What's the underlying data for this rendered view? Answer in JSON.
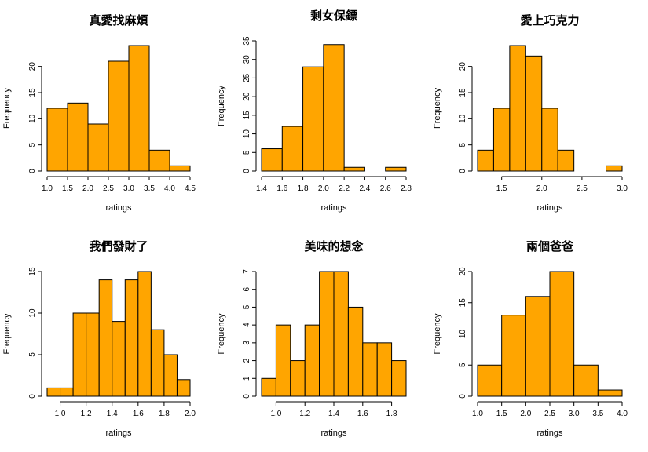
{
  "chart_data": [
    {
      "type": "bar",
      "title": "真愛找麻煩",
      "xlabel": "ratings",
      "ylabel": "Frequency",
      "bin_edges": [
        1.0,
        1.5,
        2.0,
        2.5,
        3.0,
        3.5,
        4.0,
        4.5
      ],
      "values": [
        12,
        13,
        9,
        21,
        24,
        4,
        1
      ],
      "xlim": [
        1.0,
        4.5
      ],
      "ylim": [
        0,
        24
      ],
      "xticks": [
        "1.0",
        "1.5",
        "2.0",
        "2.5",
        "3.0",
        "3.5",
        "4.0",
        "4.5"
      ],
      "yticks": [
        "0",
        "5",
        "10",
        "15",
        "20"
      ],
      "color": "#FFA500"
    },
    {
      "type": "bar",
      "title": "剩女保鏢",
      "xlabel": "ratings",
      "ylabel": "Frequency",
      "bin_edges": [
        1.4,
        1.6,
        1.8,
        2.0,
        2.2,
        2.4,
        2.6,
        2.8
      ],
      "values": [
        6,
        12,
        28,
        34,
        1,
        0,
        1
      ],
      "xlim": [
        1.4,
        2.8
      ],
      "ylim": [
        0,
        35
      ],
      "xticks": [
        "1.4",
        "1.6",
        "1.8",
        "2.0",
        "2.2",
        "2.4",
        "2.6",
        "2.8"
      ],
      "yticks": [
        "0",
        "5",
        "10",
        "15",
        "20",
        "25",
        "30",
        "35"
      ],
      "color": "#FFA500"
    },
    {
      "type": "bar",
      "title": "愛上巧克力",
      "xlabel": "ratings",
      "ylabel": "Frequency",
      "bin_edges": [
        1.2,
        1.4,
        1.6,
        1.8,
        2.0,
        2.2,
        2.4,
        2.6,
        2.8,
        3.0
      ],
      "values": [
        4,
        12,
        24,
        22,
        12,
        4,
        0,
        0,
        1
      ],
      "xlim": [
        1.2,
        3.0
      ],
      "ylim": [
        0,
        24
      ],
      "xticks": [
        "1.5",
        "2.0",
        "2.5",
        "3.0"
      ],
      "yticks": [
        "0",
        "5",
        "10",
        "15",
        "20"
      ],
      "color": "#FFA500"
    },
    {
      "type": "bar",
      "title": "我們發財了",
      "xlabel": "ratings",
      "ylabel": "Frequency",
      "bin_edges": [
        0.9,
        1.0,
        1.1,
        1.2,
        1.3,
        1.4,
        1.5,
        1.6,
        1.7,
        1.8,
        1.9,
        2.0
      ],
      "values": [
        1,
        1,
        10,
        10,
        14,
        9,
        14,
        15,
        8,
        5,
        2
      ],
      "xlim": [
        0.9,
        2.0
      ],
      "ylim": [
        0,
        15
      ],
      "xticks": [
        "1.0",
        "1.2",
        "1.4",
        "1.6",
        "1.8",
        "2.0"
      ],
      "yticks": [
        "0",
        "5",
        "10",
        "15"
      ],
      "color": "#FFA500"
    },
    {
      "type": "bar",
      "title": "美味的想念",
      "xlabel": "ratings",
      "ylabel": "Frequency",
      "bin_edges": [
        0.9,
        1.0,
        1.1,
        1.2,
        1.3,
        1.4,
        1.5,
        1.6,
        1.7,
        1.8,
        1.9
      ],
      "values": [
        1,
        4,
        2,
        4,
        7,
        7,
        5,
        3,
        3,
        2
      ],
      "xlim": [
        0.9,
        1.9
      ],
      "ylim": [
        0,
        7
      ],
      "xticks": [
        "1.0",
        "1.2",
        "1.4",
        "1.6",
        "1.8"
      ],
      "yticks": [
        "0",
        "1",
        "2",
        "3",
        "4",
        "5",
        "6",
        "7"
      ],
      "color": "#FFA500"
    },
    {
      "type": "bar",
      "title": "兩個爸爸",
      "xlabel": "ratings",
      "ylabel": "Frequency",
      "bin_edges": [
        1.0,
        1.5,
        2.0,
        2.5,
        3.0,
        3.5,
        4.0
      ],
      "values": [
        5,
        13,
        16,
        20,
        5,
        1
      ],
      "xlim": [
        1.0,
        4.0
      ],
      "ylim": [
        0,
        20
      ],
      "xticks": [
        "1.0",
        "1.5",
        "2.0",
        "2.5",
        "3.0",
        "3.5",
        "4.0"
      ],
      "yticks": [
        "0",
        "5",
        "10",
        "15",
        "20"
      ],
      "color": "#FFA500"
    }
  ]
}
